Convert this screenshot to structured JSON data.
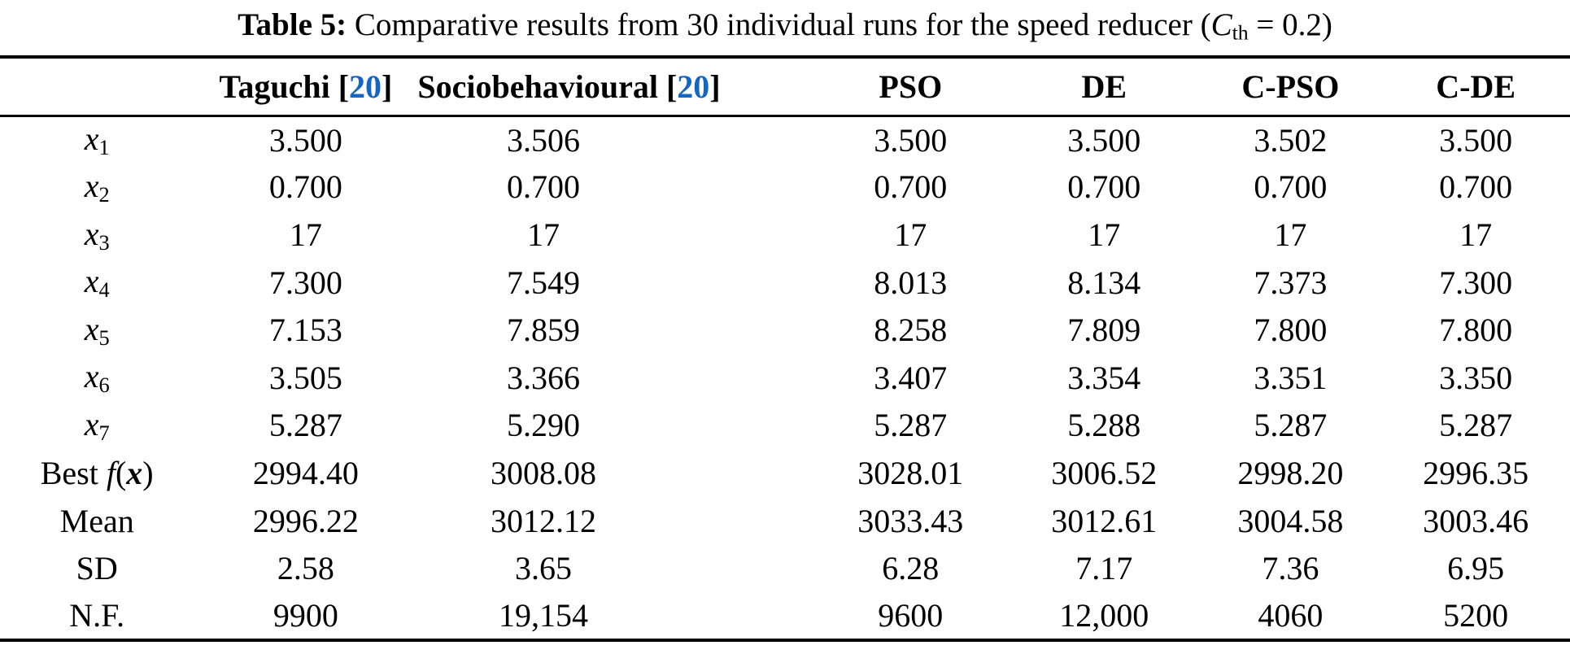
{
  "colors": {
    "reference_link": "#1565c5",
    "text": "#000000",
    "background": "#ffffff",
    "rule": "#000000"
  },
  "caption": {
    "full_text": "Table 5: Comparative results from 30 individual runs for the speed reducer (Cth = 0.2)",
    "parts": [
      {
        "t": "Table 5: ",
        "s": "bold"
      },
      {
        "t": "Comparative results from 30 individual runs for the speed reducer (",
        "s": "plain"
      },
      {
        "t": "C",
        "s": "italic"
      },
      {
        "t": "th",
        "s": "sub"
      },
      {
        "t": " = 0.2)",
        "s": "plain"
      }
    ]
  },
  "table": {
    "columns": [
      {
        "key": "row-label",
        "full_text": "",
        "parts": []
      },
      {
        "key": "taguchi",
        "full_text": "Taguchi [20]",
        "parts": [
          {
            "t": "Taguchi [",
            "s": "plain"
          },
          {
            "t": "20",
            "s": "ref"
          },
          {
            "t": "]",
            "s": "plain"
          }
        ]
      },
      {
        "key": "sociobehavioural",
        "full_text": "Sociobehavioural [20]",
        "parts": [
          {
            "t": "Sociobehavioural [",
            "s": "plain"
          },
          {
            "t": "20",
            "s": "ref"
          },
          {
            "t": "]",
            "s": "plain"
          }
        ]
      },
      {
        "key": "pso",
        "full_text": "PSO",
        "parts": [
          {
            "t": "PSO",
            "s": "plain"
          }
        ]
      },
      {
        "key": "de",
        "full_text": "DE",
        "parts": [
          {
            "t": "DE",
            "s": "plain"
          }
        ]
      },
      {
        "key": "c-pso",
        "full_text": "C-PSO",
        "parts": [
          {
            "t": "C-PSO",
            "s": "plain"
          }
        ]
      },
      {
        "key": "c-de",
        "full_text": "C-DE",
        "parts": [
          {
            "t": "C-DE",
            "s": "plain"
          }
        ]
      }
    ],
    "rows": [
      {
        "key": "x1",
        "label_text": "x1",
        "label_parts": [
          {
            "t": "x",
            "s": "italic"
          },
          {
            "t": "1",
            "s": "sub"
          }
        ],
        "values": [
          "3.500",
          "3.506",
          "3.500",
          "3.500",
          "3.502",
          "3.500"
        ]
      },
      {
        "key": "x2",
        "label_text": "x2",
        "label_parts": [
          {
            "t": "x",
            "s": "italic"
          },
          {
            "t": "2",
            "s": "sub"
          }
        ],
        "values": [
          "0.700",
          "0.700",
          "0.700",
          "0.700",
          "0.700",
          "0.700"
        ]
      },
      {
        "key": "x3",
        "label_text": "x3",
        "label_parts": [
          {
            "t": "x",
            "s": "italic"
          },
          {
            "t": "3",
            "s": "sub"
          }
        ],
        "values": [
          "17",
          "17",
          "17",
          "17",
          "17",
          "17"
        ]
      },
      {
        "key": "x4",
        "label_text": "x4",
        "label_parts": [
          {
            "t": "x",
            "s": "italic"
          },
          {
            "t": "4",
            "s": "sub"
          }
        ],
        "values": [
          "7.300",
          "7.549",
          "8.013",
          "8.134",
          "7.373",
          "7.300"
        ]
      },
      {
        "key": "x5",
        "label_text": "x5",
        "label_parts": [
          {
            "t": "x",
            "s": "italic"
          },
          {
            "t": "5",
            "s": "sub"
          }
        ],
        "values": [
          "7.153",
          "7.859",
          "8.258",
          "7.809",
          "7.800",
          "7.800"
        ]
      },
      {
        "key": "x6",
        "label_text": "x6",
        "label_parts": [
          {
            "t": "x",
            "s": "italic"
          },
          {
            "t": "6",
            "s": "sub"
          }
        ],
        "values": [
          "3.505",
          "3.366",
          "3.407",
          "3.354",
          "3.351",
          "3.350"
        ]
      },
      {
        "key": "x7",
        "label_text": "x7",
        "label_parts": [
          {
            "t": "x",
            "s": "italic"
          },
          {
            "t": "7",
            "s": "sub"
          }
        ],
        "values": [
          "5.287",
          "5.290",
          "5.287",
          "5.288",
          "5.287",
          "5.287"
        ]
      },
      {
        "key": "best-fx",
        "label_text": "Best f(x)",
        "label_parts": [
          {
            "t": "Best ",
            "s": "plain"
          },
          {
            "t": "f",
            "s": "italic"
          },
          {
            "t": "(",
            "s": "plain"
          },
          {
            "t": "x",
            "s": "bolditalic"
          },
          {
            "t": ")",
            "s": "plain"
          }
        ],
        "values": [
          "2994.40",
          "3008.08",
          "3028.01",
          "3006.52",
          "2998.20",
          "2996.35"
        ]
      },
      {
        "key": "mean",
        "label_text": "Mean",
        "label_parts": [
          {
            "t": "Mean",
            "s": "plain"
          }
        ],
        "values": [
          "2996.22",
          "3012.12",
          "3033.43",
          "3012.61",
          "3004.58",
          "3003.46"
        ]
      },
      {
        "key": "sd",
        "label_text": "SD",
        "label_parts": [
          {
            "t": "SD",
            "s": "plain"
          }
        ],
        "values": [
          "2.58",
          "3.65",
          "6.28",
          "7.17",
          "7.36",
          "6.95"
        ]
      },
      {
        "key": "nf",
        "label_text": "N.F.",
        "label_parts": [
          {
            "t": "N.F.",
            "s": "plain"
          }
        ],
        "values": [
          "9900",
          "19,154",
          "9600",
          "12,000",
          "4060",
          "5200"
        ]
      }
    ]
  }
}
